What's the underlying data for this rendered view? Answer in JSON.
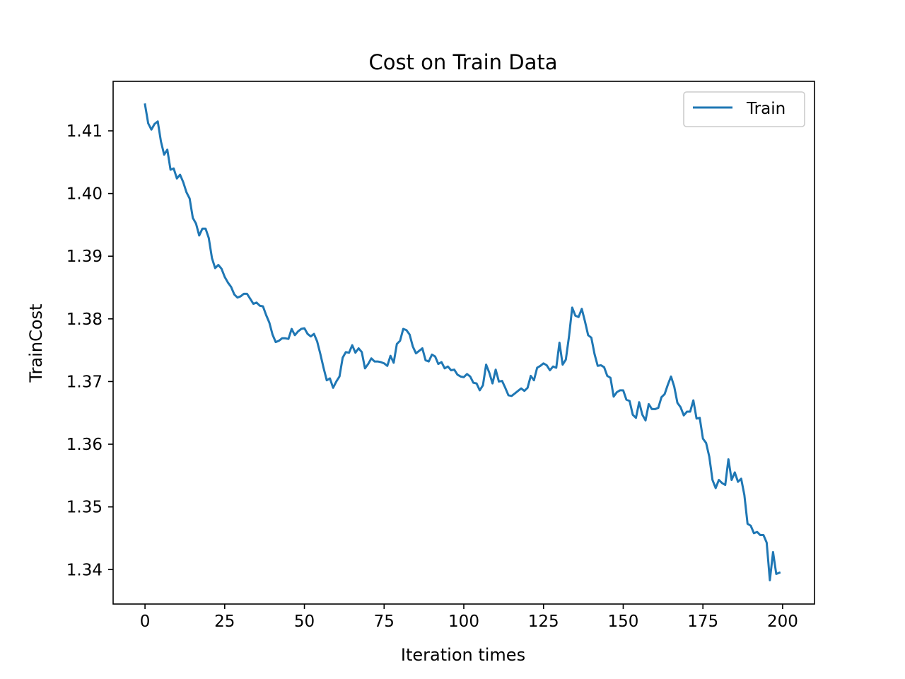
{
  "chart_data": {
    "type": "line",
    "title": "Cost on Train Data",
    "xlabel": "Iteration times",
    "ylabel": "TrainCost",
    "xlim": [
      -10,
      210
    ],
    "ylim": [
      1.3345,
      1.4179
    ],
    "xticks": [
      0,
      25,
      50,
      75,
      100,
      125,
      150,
      175,
      200
    ],
    "xtick_labels": [
      "0",
      "25",
      "50",
      "75",
      "100",
      "125",
      "150",
      "175",
      "200"
    ],
    "yticks": [
      1.34,
      1.35,
      1.36,
      1.37,
      1.38,
      1.39,
      1.4,
      1.41
    ],
    "ytick_labels": [
      "1.34",
      "1.35",
      "1.36",
      "1.37",
      "1.38",
      "1.39",
      "1.40",
      "1.41"
    ],
    "grid": false,
    "legend_position": "top-right",
    "series": [
      {
        "name": "Train",
        "color": "#1f77b4",
        "x": [
          0,
          1,
          2,
          3,
          4,
          5,
          6,
          7,
          8,
          9,
          10,
          11,
          12,
          13,
          14,
          15,
          16,
          17,
          18,
          19,
          20,
          21,
          22,
          23,
          24,
          25,
          26,
          27,
          28,
          29,
          30,
          31,
          32,
          33,
          34,
          35,
          36,
          37,
          38,
          39,
          40,
          41,
          42,
          43,
          44,
          45,
          46,
          47,
          48,
          49,
          50,
          51,
          52,
          53,
          54,
          55,
          56,
          57,
          58,
          59,
          60,
          61,
          62,
          63,
          64,
          65,
          66,
          67,
          68,
          69,
          70,
          71,
          72,
          73,
          74,
          75,
          76,
          77,
          78,
          79,
          80,
          81,
          82,
          83,
          84,
          85,
          86,
          87,
          88,
          89,
          90,
          91,
          92,
          93,
          94,
          95,
          96,
          97,
          98,
          99,
          100,
          101,
          102,
          103,
          104,
          105,
          106,
          107,
          108,
          109,
          110,
          111,
          112,
          113,
          114,
          115,
          116,
          117,
          118,
          119,
          120,
          121,
          122,
          123,
          124,
          125,
          126,
          127,
          128,
          129,
          130,
          131,
          132,
          133,
          134,
          135,
          136,
          137,
          138,
          139,
          140,
          141,
          142,
          143,
          144,
          145,
          146,
          147,
          148,
          149,
          150,
          151,
          152,
          153,
          154,
          155,
          156,
          157,
          158,
          159,
          160,
          161,
          162,
          163,
          164,
          165,
          166,
          167,
          168,
          169,
          170,
          171,
          172,
          173,
          174,
          175,
          176,
          177,
          178,
          179,
          180,
          181,
          182,
          183,
          184,
          185,
          186,
          187,
          188,
          189,
          190,
          191,
          192,
          193,
          194,
          195,
          196,
          197,
          198,
          199
        ],
        "y": [
          1.4142,
          1.4112,
          1.4102,
          1.4111,
          1.4115,
          1.4083,
          1.4062,
          1.407,
          1.4038,
          1.404,
          1.4024,
          1.403,
          1.4018,
          1.4002,
          1.3992,
          1.3961,
          1.3952,
          1.3933,
          1.3944,
          1.3944,
          1.3929,
          1.3897,
          1.3881,
          1.3886,
          1.388,
          1.3867,
          1.3858,
          1.3851,
          1.3839,
          1.3834,
          1.3836,
          1.384,
          1.384,
          1.3832,
          1.3824,
          1.3826,
          1.3821,
          1.382,
          1.3806,
          1.3794,
          1.3775,
          1.3763,
          1.3765,
          1.3769,
          1.3769,
          1.3768,
          1.3784,
          1.3774,
          1.378,
          1.3784,
          1.3785,
          1.3776,
          1.3772,
          1.3776,
          1.3764,
          1.3744,
          1.3722,
          1.3702,
          1.3705,
          1.369,
          1.37,
          1.3708,
          1.3738,
          1.3747,
          1.3746,
          1.3758,
          1.3746,
          1.3753,
          1.3747,
          1.3721,
          1.3728,
          1.3737,
          1.3732,
          1.3732,
          1.3731,
          1.3729,
          1.3725,
          1.3741,
          1.373,
          1.376,
          1.3765,
          1.3784,
          1.3782,
          1.3775,
          1.3756,
          1.3745,
          1.3749,
          1.3753,
          1.3734,
          1.3732,
          1.3743,
          1.374,
          1.3728,
          1.3731,
          1.3721,
          1.3724,
          1.3718,
          1.3719,
          1.3711,
          1.3708,
          1.3707,
          1.3712,
          1.3708,
          1.3698,
          1.3697,
          1.3686,
          1.3694,
          1.3727,
          1.3714,
          1.3697,
          1.3719,
          1.37,
          1.3701,
          1.369,
          1.3678,
          1.3677,
          1.3681,
          1.3685,
          1.3689,
          1.3685,
          1.369,
          1.3709,
          1.3702,
          1.3722,
          1.3725,
          1.3729,
          1.3726,
          1.3718,
          1.3724,
          1.3722,
          1.3762,
          1.3727,
          1.3735,
          1.3772,
          1.3818,
          1.3805,
          1.3803,
          1.3816,
          1.3796,
          1.3774,
          1.377,
          1.3744,
          1.3725,
          1.3726,
          1.3723,
          1.3709,
          1.3706,
          1.3676,
          1.3683,
          1.3686,
          1.3686,
          1.3671,
          1.3669,
          1.3647,
          1.3642,
          1.3667,
          1.3647,
          1.3638,
          1.3664,
          1.3656,
          1.3656,
          1.3658,
          1.3675,
          1.368,
          1.3695,
          1.3708,
          1.3692,
          1.3666,
          1.3659,
          1.3646,
          1.3652,
          1.3652,
          1.367,
          1.3641,
          1.3642,
          1.3609,
          1.3602,
          1.358,
          1.3543,
          1.353,
          1.3543,
          1.3538,
          1.3535,
          1.3576,
          1.3543,
          1.3555,
          1.354,
          1.3545,
          1.3519,
          1.3473,
          1.347,
          1.3458,
          1.346,
          1.3455,
          1.3455,
          1.3443,
          1.3383,
          1.3428,
          1.3393,
          1.3395
        ]
      }
    ]
  }
}
